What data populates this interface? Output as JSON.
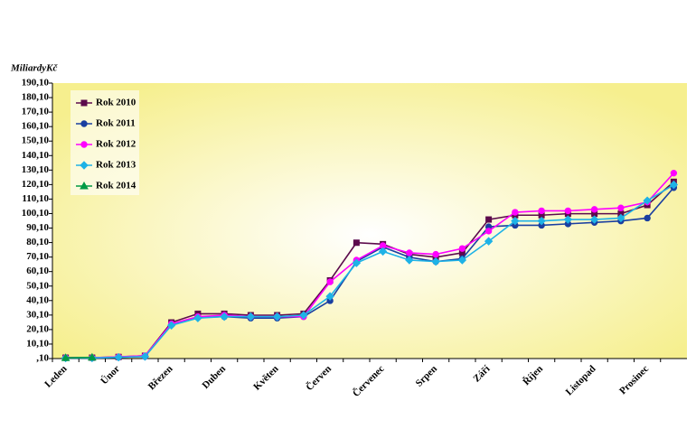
{
  "chart_data": {
    "type": "line",
    "y_axis_label": "MiliardyKč",
    "categories": [
      "Leden",
      null,
      "Únor",
      null,
      "Březen",
      null,
      "Duben",
      null,
      "Květen",
      null,
      "Červen",
      null,
      "Červenec",
      null,
      "Srpen",
      null,
      "Září",
      null,
      "Říjen",
      null,
      "Listopad",
      null,
      "Prosinec",
      null
    ],
    "series": [
      {
        "name": "Rok 2010",
        "color": "#5c0a4c",
        "marker": "square",
        "values": [
          0.7,
          0.7,
          1.2,
          2,
          25,
          31,
          31,
          30,
          30,
          31,
          54,
          80,
          79,
          72,
          70,
          73,
          96,
          99,
          99,
          100,
          100,
          100,
          106,
          122
        ]
      },
      {
        "name": "Rok 2011",
        "color": "#1a3fa0",
        "marker": "circle",
        "values": [
          0.5,
          0.5,
          1,
          1.5,
          23.5,
          28.5,
          29,
          28,
          28,
          29,
          40,
          67,
          77,
          70,
          67,
          69,
          91,
          92,
          92,
          93,
          94,
          95,
          97,
          118
        ]
      },
      {
        "name": "Rok 2012",
        "color": "#ff00ff",
        "marker": "circle",
        "values": [
          0.6,
          0.6,
          1.3,
          2,
          24,
          29,
          30,
          29,
          29,
          29,
          53,
          68,
          78,
          73,
          72,
          76,
          88,
          101,
          102,
          102,
          103,
          104,
          108,
          128
        ]
      },
      {
        "name": "Rok 2013",
        "color": "#1eb2e6",
        "marker": "diamond",
        "values": [
          0.5,
          0.5,
          1,
          1.5,
          23,
          28,
          29,
          29,
          29,
          30,
          43,
          66,
          74,
          68,
          67,
          68,
          81,
          95,
          95,
          96,
          96,
          97,
          109,
          120
        ]
      },
      {
        "name": "Rok 2014",
        "color": "#009a44",
        "marker": "triangle",
        "values": [
          0.6,
          0.9,
          null,
          null,
          null,
          null,
          null,
          null,
          null,
          null,
          null,
          null,
          null,
          null,
          null,
          null,
          null,
          null,
          null,
          null,
          null,
          null,
          null,
          null
        ]
      }
    ],
    "ylim": [
      0.1,
      190.1
    ],
    "yticks": [
      {
        "value": 0.1,
        "label": ",10"
      },
      {
        "value": 10.1,
        "label": "10,10"
      },
      {
        "value": 20.1,
        "label": "20,10"
      },
      {
        "value": 30.1,
        "label": "30,10"
      },
      {
        "value": 40.1,
        "label": "40,10"
      },
      {
        "value": 50.1,
        "label": "50,10"
      },
      {
        "value": 60.1,
        "label": "60,10"
      },
      {
        "value": 70.1,
        "label": "70,10"
      },
      {
        "value": 80.1,
        "label": "80,10"
      },
      {
        "value": 90.1,
        "label": "90,10"
      },
      {
        "value": 100.1,
        "label": "100,10"
      },
      {
        "value": 110.1,
        "label": "110,10"
      },
      {
        "value": 120.1,
        "label": "120,10"
      },
      {
        "value": 130.1,
        "label": "130,10"
      },
      {
        "value": 140.1,
        "label": "140,10"
      },
      {
        "value": 150.1,
        "label": "150,10"
      },
      {
        "value": 160.1,
        "label": "160,10"
      },
      {
        "value": 170.1,
        "label": "170,10"
      },
      {
        "value": 180.1,
        "label": "180,10"
      },
      {
        "value": 190.1,
        "label": "190,10"
      }
    ],
    "grid": false,
    "legend": "top-left"
  }
}
